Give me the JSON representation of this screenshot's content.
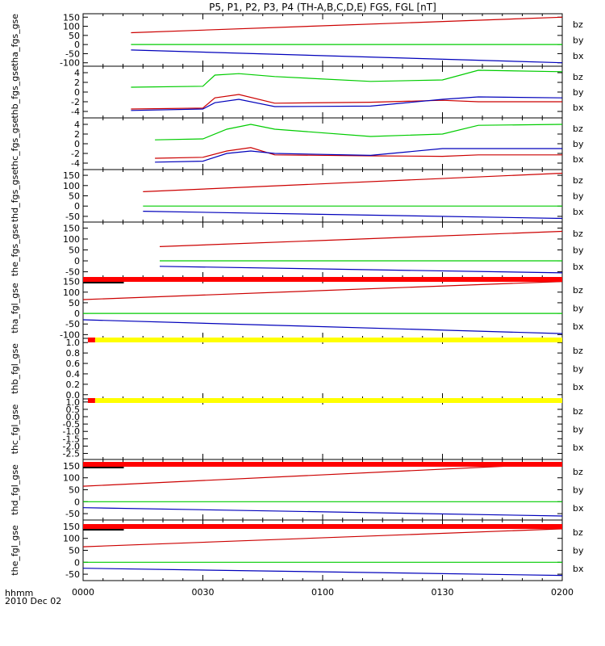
{
  "title": "P5, P1, P2, P3, P4 (TH-A,B,C,D,E) FGS, FGL [nT]",
  "time_label": "hhmm",
  "date_label": "2010 Dec 02",
  "x_ticks": [
    "0000",
    "0030",
    "0100",
    "0130",
    "0200"
  ],
  "colors": {
    "bz": "#cc0000",
    "by": "#00cc00",
    "bx": "#0000bb",
    "flag_red": "#ff0000",
    "flag_yellow": "#ffff00"
  },
  "chart_data": [
    {
      "type": "line",
      "ylabel": "tha_fgs_gse",
      "yticks": [
        "150",
        "100",
        "50",
        "0",
        "-50",
        "-100"
      ],
      "ylim": [
        -110,
        160
      ],
      "series": [
        {
          "name": "bz",
          "x": [
            0.2,
            2.0
          ],
          "values": [
            65,
            150
          ]
        },
        {
          "name": "by",
          "x": [
            0.2,
            2.0
          ],
          "values": [
            0,
            0
          ]
        },
        {
          "name": "bx",
          "x": [
            0.2,
            2.0
          ],
          "values": [
            -30,
            -100
          ]
        }
      ]
    },
    {
      "type": "line",
      "ylabel": "thb_fgs_gse",
      "yticks": [
        "4",
        "2",
        "0",
        "-2",
        "-4"
      ],
      "ylim": [
        -5,
        5
      ],
      "series": [
        {
          "name": "bz",
          "x": [
            0.2,
            0.5,
            0.55,
            0.65,
            0.8,
            1.2,
            1.5,
            1.65,
            2.0
          ],
          "values": [
            -3.5,
            -3.3,
            -1.2,
            -0.5,
            -2.3,
            -2.1,
            -1.7,
            -2.0,
            -2.0
          ]
        },
        {
          "name": "by",
          "x": [
            0.2,
            0.5,
            0.55,
            0.65,
            0.8,
            1.2,
            1.5,
            1.65,
            2.0
          ],
          "values": [
            1.0,
            1.2,
            3.5,
            3.8,
            3.2,
            2.2,
            2.5,
            4.5,
            4.2
          ]
        },
        {
          "name": "bx",
          "x": [
            0.2,
            0.5,
            0.55,
            0.65,
            0.8,
            1.2,
            1.5,
            1.65,
            2.0
          ],
          "values": [
            -3.8,
            -3.5,
            -2.2,
            -1.5,
            -3.0,
            -2.9,
            -1.5,
            -1.0,
            -1.2
          ]
        }
      ]
    },
    {
      "type": "line",
      "ylabel": "thc_fgs_gse",
      "yticks": [
        "4",
        "2",
        "0",
        "-2",
        "-4"
      ],
      "ylim": [
        -5,
        5
      ],
      "series": [
        {
          "name": "bz",
          "x": [
            0.3,
            0.5,
            0.6,
            0.7,
            0.8,
            1.2,
            1.5,
            1.65,
            2.0
          ],
          "values": [
            -3.0,
            -2.8,
            -1.5,
            -0.8,
            -2.3,
            -2.5,
            -2.6,
            -2.3,
            -2.3
          ]
        },
        {
          "name": "by",
          "x": [
            0.3,
            0.5,
            0.6,
            0.7,
            0.8,
            1.2,
            1.5,
            1.65,
            2.0
          ],
          "values": [
            0.8,
            1.0,
            3.0,
            4.0,
            3.0,
            1.5,
            2.0,
            3.8,
            4.0
          ]
        },
        {
          "name": "bx",
          "x": [
            0.3,
            0.5,
            0.6,
            0.7,
            0.8,
            1.2,
            1.5,
            1.65,
            2.0
          ],
          "values": [
            -3.8,
            -3.6,
            -2.0,
            -1.5,
            -2.0,
            -2.4,
            -1.0,
            -1.0,
            -1.0
          ]
        }
      ]
    },
    {
      "type": "line",
      "ylabel": "thd_fgs_gse",
      "yticks": [
        "150",
        "100",
        "50",
        "0",
        "-50"
      ],
      "ylim": [
        -70,
        170
      ],
      "series": [
        {
          "name": "bz",
          "x": [
            0.25,
            2.0
          ],
          "values": [
            70,
            160
          ]
        },
        {
          "name": "by",
          "x": [
            0.25,
            2.0
          ],
          "values": [
            0,
            0
          ]
        },
        {
          "name": "bx",
          "x": [
            0.25,
            2.0
          ],
          "values": [
            -25,
            -60
          ]
        }
      ]
    },
    {
      "type": "line",
      "ylabel": "the_fgs_gse",
      "yticks": [
        "150",
        "100",
        "50",
        "0",
        "-50"
      ],
      "ylim": [
        -70,
        170
      ],
      "series": [
        {
          "name": "bz",
          "x": [
            0.32,
            2.0
          ],
          "values": [
            65,
            135
          ]
        },
        {
          "name": "by",
          "x": [
            0.32,
            2.0
          ],
          "values": [
            0,
            0
          ]
        },
        {
          "name": "bx",
          "x": [
            0.32,
            2.0
          ],
          "values": [
            -25,
            -55
          ]
        }
      ]
    },
    {
      "type": "line",
      "ylabel": "tha_fgl_gse",
      "yticks": [
        "150",
        "100",
        "50",
        "0",
        "-50",
        "-100"
      ],
      "ylim": [
        -110,
        160
      ],
      "series": [
        {
          "name": "bz",
          "x": [
            0.0,
            2.0
          ],
          "values": [
            65,
            150
          ]
        },
        {
          "name": "by",
          "x": [
            0.0,
            2.0
          ],
          "values": [
            0,
            0
          ]
        },
        {
          "name": "bx",
          "x": [
            0.0,
            2.0
          ],
          "values": [
            -30,
            -95
          ]
        }
      ]
    },
    {
      "type": "line",
      "ylabel": "thb_fgl_gse",
      "yticks": [
        "1.0",
        "0.8",
        "0.6",
        "0.4",
        "0.2",
        "0.0"
      ],
      "ylim": [
        -0.05,
        1.05
      ],
      "series": []
    },
    {
      "type": "line",
      "ylabel": "thc_fgl_gse",
      "yticks": [
        "1.0",
        "0.5",
        "0.0",
        "-0.5",
        "-1.0",
        "-1.5",
        "-2.0",
        "-2.5"
      ],
      "ylim": [
        -2.8,
        1.1
      ],
      "series": []
    },
    {
      "type": "line",
      "ylabel": "thd_fgl_gse",
      "yticks": [
        "150",
        "100",
        "50",
        "0",
        "-50"
      ],
      "ylim": [
        -70,
        170
      ],
      "series": [
        {
          "name": "bz",
          "x": [
            0.0,
            2.0
          ],
          "values": [
            65,
            160
          ]
        },
        {
          "name": "by",
          "x": [
            0.0,
            2.0
          ],
          "values": [
            0,
            0
          ]
        },
        {
          "name": "bx",
          "x": [
            0.0,
            2.0
          ],
          "values": [
            -25,
            -60
          ]
        }
      ]
    },
    {
      "type": "line",
      "ylabel": "the_fgl_gse",
      "yticks": [
        "150",
        "100",
        "50",
        "0",
        "-50"
      ],
      "ylim": [
        -70,
        170
      ],
      "series": [
        {
          "name": "bz",
          "x": [
            0.0,
            2.0
          ],
          "values": [
            65,
            140
          ]
        },
        {
          "name": "by",
          "x": [
            0.0,
            2.0
          ],
          "values": [
            0,
            0
          ]
        },
        {
          "name": "bx",
          "x": [
            0.0,
            2.0
          ],
          "values": [
            -25,
            -55
          ]
        }
      ]
    }
  ],
  "legend_labels": [
    "bz",
    "by",
    "bx"
  ]
}
